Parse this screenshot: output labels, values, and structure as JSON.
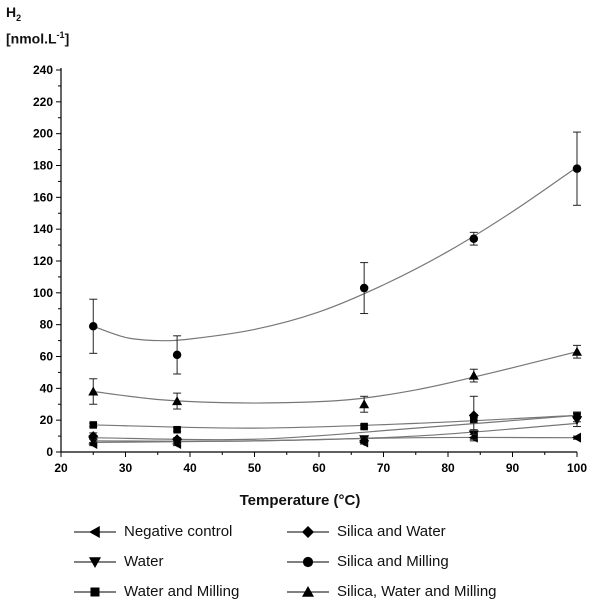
{
  "chart_data": {
    "type": "scatter",
    "title": "",
    "ylabel_line1": "H",
    "ylabel_sub": "2",
    "ylabel_line2": "[nmol.L",
    "ylabel_sup": "-1",
    "ylabel_end": "]",
    "xlabel": "Temperature (°C)",
    "xlim": [
      20,
      100
    ],
    "ylim": [
      0,
      240
    ],
    "xticks": [
      20,
      30,
      40,
      50,
      60,
      70,
      80,
      90,
      100
    ],
    "yticks": [
      0,
      20,
      40,
      60,
      80,
      100,
      120,
      140,
      160,
      180,
      200,
      220,
      240
    ],
    "grid": false,
    "legend_position": "bottom",
    "series": [
      {
        "name": "Negative control",
        "marker": "triangle-left",
        "x": [
          25,
          38,
          67,
          84,
          100
        ],
        "y": [
          5,
          5,
          6,
          9,
          9
        ],
        "err": [
          1,
          1,
          1,
          2,
          1
        ],
        "fit": [
          [
            25,
            6
          ],
          [
            50,
            7
          ],
          [
            75,
            9
          ],
          [
            100,
            9
          ]
        ]
      },
      {
        "name": "Water",
        "marker": "triangle-down",
        "x": [
          25,
          38,
          67,
          84,
          100
        ],
        "y": [
          7,
          6,
          8,
          11,
          20
        ],
        "err": [
          1,
          1,
          1,
          3,
          4
        ],
        "fit": [
          [
            25,
            7
          ],
          [
            50,
            7
          ],
          [
            75,
            10
          ],
          [
            100,
            18
          ]
        ]
      },
      {
        "name": "Water and Milling",
        "marker": "square",
        "x": [
          25,
          38,
          67,
          84,
          100
        ],
        "y": [
          17,
          14,
          16,
          20,
          23
        ],
        "err": [
          1,
          1,
          1,
          2,
          2
        ],
        "fit": [
          [
            25,
            17
          ],
          [
            50,
            15
          ],
          [
            75,
            18
          ],
          [
            100,
            23
          ]
        ]
      },
      {
        "name": "Silica and Water",
        "marker": "diamond",
        "x": [
          25,
          38,
          67,
          84,
          100
        ],
        "y": [
          10,
          8,
          7,
          23,
          22
        ],
        "err": [
          2,
          1,
          2,
          12,
          3
        ],
        "fit": [
          [
            25,
            9
          ],
          [
            50,
            8
          ],
          [
            75,
            15
          ],
          [
            100,
            23
          ]
        ]
      },
      {
        "name": "Silica and Milling",
        "marker": "circle",
        "x": [
          25,
          38,
          67,
          84,
          100
        ],
        "y": [
          79,
          61,
          103,
          134,
          178
        ],
        "err": [
          17,
          12,
          16,
          4,
          23
        ],
        "fit": [
          [
            25,
            79
          ],
          [
            30,
            72
          ],
          [
            35,
            70
          ],
          [
            40,
            71
          ],
          [
            50,
            77
          ],
          [
            60,
            88
          ],
          [
            70,
            105
          ],
          [
            80,
            126
          ],
          [
            90,
            151
          ],
          [
            100,
            179
          ]
        ]
      },
      {
        "name": "Silica, Water and Milling",
        "marker": "triangle-up",
        "x": [
          25,
          38,
          67,
          84,
          100
        ],
        "y": [
          38,
          32,
          30,
          48,
          63
        ],
        "err": [
          8,
          5,
          5,
          4,
          4
        ],
        "fit": [
          [
            25,
            38
          ],
          [
            35,
            33
          ],
          [
            45,
            31
          ],
          [
            55,
            31
          ],
          [
            65,
            33
          ],
          [
            75,
            39
          ],
          [
            85,
            48
          ],
          [
            100,
            63
          ]
        ]
      }
    ]
  }
}
